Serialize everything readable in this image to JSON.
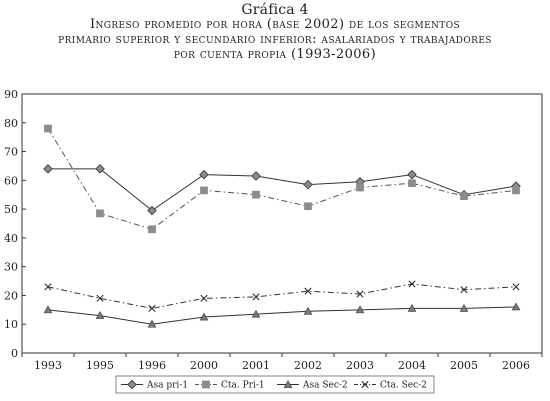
{
  "figure": {
    "label": "Gráfica 4",
    "title_line1": "Ingreso promedio por hora (base 2002) de los segmentos",
    "title_line2": "primario superior y secundario inferior: asalariados y trabajadores",
    "title_line3": "por cuenta propia (1993-2006)"
  },
  "chart_data": {
    "type": "line",
    "categories": [
      "1993",
      "1995",
      "1996",
      "2000",
      "2001",
      "2002",
      "2003",
      "2004",
      "2005",
      "2006"
    ],
    "ylim": [
      0,
      90
    ],
    "yticks": [
      0,
      10,
      20,
      30,
      40,
      50,
      60,
      70,
      80,
      90
    ],
    "grid": false,
    "legend_position": "bottom",
    "xlabel": "",
    "ylabel": "",
    "series": [
      {
        "name": "Asa pri-1",
        "marker": "diamond",
        "line": "solid",
        "color": "#333333",
        "values": [
          64,
          64,
          49.5,
          62,
          61.5,
          58.5,
          59.5,
          62,
          55,
          58
        ]
      },
      {
        "name": "Cta. Pri-1",
        "marker": "square",
        "line": "dashdot",
        "color": "#555555",
        "values": [
          78,
          48.5,
          43,
          56.5,
          55,
          51,
          57.5,
          59,
          54.5,
          56.5
        ]
      },
      {
        "name": "Asa Sec-2",
        "marker": "triangle",
        "line": "solid",
        "color": "#333333",
        "values": [
          15,
          13,
          10,
          12.5,
          13.5,
          14.5,
          15,
          15.5,
          15.5,
          16
        ]
      },
      {
        "name": "Cta. Sec-2",
        "marker": "x",
        "line": "dashdot",
        "color": "#333333",
        "values": [
          23,
          19,
          15.5,
          19,
          19.5,
          21.5,
          20.5,
          24,
          22,
          23
        ]
      }
    ]
  }
}
